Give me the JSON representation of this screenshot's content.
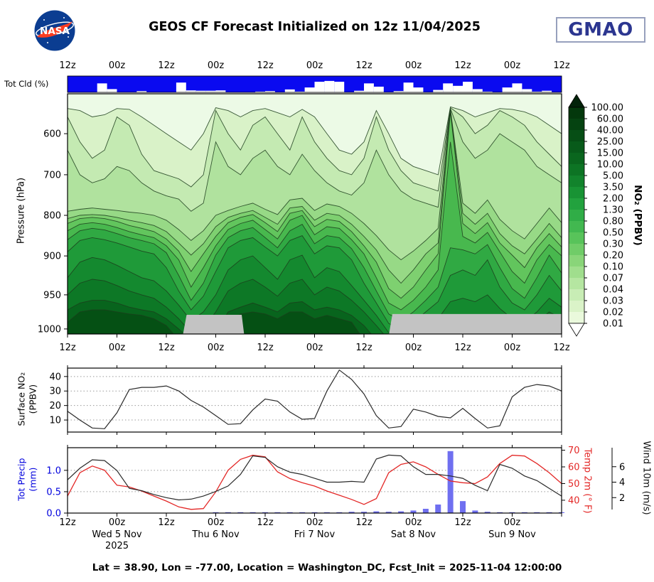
{
  "header": {
    "title": "GEOS CF Forecast Initialized on 12z 11/04/2025",
    "nasa_text": "NASA",
    "gmao_text": "GMAO"
  },
  "labels": {
    "tot_cld": "Tot Cld (%)",
    "pressure": "Pressure (hPa)",
    "surface_no2_l1": "Surface NO₂",
    "surface_no2_l2": "(PPBV)",
    "precip_l1": "Tot Precip",
    "precip_l2": "(mm)",
    "temp": "Temp 2m (° F)",
    "wind": "Wind 10m (m/s)",
    "colorbar": "NO₂ (PPBV)"
  },
  "footer": {
    "text": "Lat = 38.90, Lon = -77.00, Location = Washington_DC, Fcst_Init = 2025-11-04 12:00:00"
  },
  "colors": {
    "cloud_blue": "#0a0af0",
    "precip_bar": "#6f6ff0",
    "temp_line": "#e32726",
    "wind_line": "#2a2a2a",
    "surface_line": "#2a2a2a",
    "precip_axis_text": "#0000dd",
    "temp_axis_text": "#e32726",
    "gray_region": "#c3c3c3",
    "contour_line": "#1c3d1c",
    "contour_background": "#ecfae6"
  },
  "axis": {
    "x_labels_11": [
      "12z",
      "00z",
      "12z",
      "00z",
      "12z",
      "00z",
      "12z",
      "00z",
      "12z",
      "00z",
      "12z"
    ],
    "x_labels_10": [
      "12z",
      "00z",
      "12z",
      "00z",
      "12z",
      "00z",
      "12z",
      "00z",
      "12z",
      "00z"
    ],
    "dates": [
      "Wed 5 Nov",
      "Thu 6 Nov",
      "Fri 7 Nov",
      "Sat 8 Nov",
      "Sun 9 Nov"
    ],
    "year": "2025",
    "pressure_ticks": [
      600,
      700,
      800,
      900,
      950,
      1000
    ],
    "surface_ticks": [
      10,
      20,
      30,
      40
    ],
    "precip_ticks": [
      "0.0",
      "0.5",
      "1.0"
    ],
    "temp_ticks": [
      40,
      50,
      60,
      70
    ],
    "wind_ticks": [
      2,
      4,
      6
    ]
  },
  "chart_data": [
    {
      "type": "bar",
      "name": "total-cloud-cover-strip",
      "title": "Tot Cld (%)",
      "ymax": 100,
      "values": [
        100,
        100,
        100,
        45,
        80,
        100,
        100,
        92,
        100,
        100,
        100,
        40,
        88,
        90,
        90,
        88,
        100,
        100,
        100,
        95,
        92,
        100,
        82,
        95,
        70,
        35,
        30,
        35,
        100,
        90,
        45,
        65,
        100,
        92,
        40,
        70,
        100,
        85,
        45,
        60,
        35,
        80,
        95,
        100,
        70,
        45,
        80,
        95,
        90,
        100
      ]
    },
    {
      "type": "heatmap",
      "name": "no2-time-pressure-contour",
      "title": "NO2 (PPBV) time-height cross section",
      "ylabel": "Pressure (hPa)",
      "x_hours": 120,
      "time_step_hours": 3,
      "pressure_axis_map": [
        [
          505,
          0
        ],
        [
          600,
          0.166
        ],
        [
          700,
          0.337
        ],
        [
          800,
          0.506
        ],
        [
          900,
          0.675
        ],
        [
          950,
          0.837
        ],
        [
          1000,
          0.979
        ],
        [
          1020,
          1.04
        ]
      ],
      "bands": [
        {
          "level_ppbv": 0.04,
          "color": "#d9f2c8",
          "top_hpa": [
            540,
            545,
            560,
            555,
            540,
            542,
            560,
            580,
            600,
            620,
            640,
            600,
            538,
            545,
            560,
            545,
            540,
            550,
            560,
            542,
            560,
            600,
            640,
            650,
            620,
            545,
            600,
            660,
            680,
            690,
            700,
            536,
            545,
            560,
            550,
            540,
            542,
            548,
            560,
            580,
            600
          ]
        },
        {
          "level_ppbv": 0.07,
          "color": "#c4eab2",
          "top_hpa": [
            560,
            620,
            660,
            640,
            560,
            580,
            650,
            690,
            700,
            710,
            730,
            700,
            545,
            600,
            640,
            580,
            560,
            600,
            640,
            560,
            620,
            660,
            690,
            700,
            660,
            560,
            640,
            690,
            720,
            730,
            740,
            538,
            560,
            600,
            580,
            545,
            560,
            580,
            620,
            650,
            680
          ]
        },
        {
          "level_ppbv": 0.1,
          "color": "#b0e29e",
          "top_hpa": [
            640,
            700,
            720,
            710,
            680,
            690,
            720,
            740,
            752,
            760,
            790,
            770,
            620,
            680,
            700,
            660,
            640,
            680,
            700,
            650,
            690,
            720,
            740,
            750,
            720,
            640,
            700,
            740,
            760,
            770,
            780,
            540,
            620,
            660,
            640,
            600,
            620,
            640,
            680,
            700,
            720
          ]
        },
        {
          "level_ppbv": 0.2,
          "color": "#97d986",
          "top_hpa": [
            790,
            785,
            782,
            785,
            788,
            792,
            795,
            800,
            812,
            835,
            862,
            838,
            800,
            788,
            778,
            770,
            785,
            798,
            762,
            758,
            788,
            772,
            778,
            795,
            820,
            850,
            885,
            905,
            888,
            862,
            832,
            542,
            770,
            795,
            762,
            810,
            838,
            858,
            820,
            782,
            818
          ]
        },
        {
          "level_ppbv": 0.3,
          "color": "#7ed070",
          "top_hpa": [
            808,
            800,
            798,
            800,
            805,
            812,
            818,
            825,
            840,
            868,
            898,
            870,
            828,
            805,
            795,
            788,
            805,
            822,
            782,
            778,
            812,
            795,
            800,
            822,
            852,
            885,
            918,
            935,
            918,
            895,
            868,
            544,
            795,
            822,
            795,
            845,
            875,
            895,
            858,
            820,
            855
          ]
        },
        {
          "level_ppbv": 0.5,
          "color": "#62c55d",
          "top_hpa": [
            820,
            808,
            805,
            808,
            815,
            825,
            832,
            840,
            858,
            888,
            920,
            895,
            852,
            818,
            805,
            798,
            818,
            840,
            795,
            788,
            828,
            810,
            815,
            840,
            875,
            908,
            942,
            955,
            940,
            918,
            895,
            548,
            820,
            845,
            818,
            868,
            898,
            915,
            880,
            845,
            878
          ]
        },
        {
          "level_ppbv": 0.8,
          "color": "#48b84e",
          "top_hpa": [
            838,
            822,
            818,
            822,
            830,
            840,
            848,
            855,
            875,
            905,
            940,
            915,
            875,
            835,
            820,
            812,
            835,
            858,
            812,
            800,
            848,
            828,
            832,
            860,
            895,
            928,
            962,
            972,
            958,
            940,
            918,
            620,
            852,
            868,
            842,
            890,
            920,
            935,
            905,
            872,
            900
          ]
        },
        {
          "level_ppbv": 1.3,
          "color": "#30a943",
          "top_hpa": [
            860,
            838,
            832,
            836,
            845,
            855,
            862,
            870,
            892,
            925,
            958,
            935,
            898,
            855,
            838,
            830,
            855,
            880,
            838,
            822,
            870,
            850,
            855,
            882,
            915,
            945,
            978,
            988,
            975,
            958,
            940,
            880,
            885,
            895,
            872,
            915,
            942,
            955,
            928,
            898,
            922
          ]
        },
        {
          "level_ppbv": 2.0,
          "color": "#1f9a39",
          "top_hpa": [
            890,
            862,
            855,
            860,
            868,
            878,
            888,
            895,
            915,
            945,
            972,
            952,
            920,
            880,
            862,
            855,
            878,
            900,
            862,
            850,
            895,
            875,
            880,
            905,
            935,
            962,
            992,
            1000,
            990,
            975,
            960,
            925,
            918,
            925,
            905,
            940,
            962,
            972,
            950,
            925,
            945
          ]
        },
        {
          "level_ppbv": 3.5,
          "color": "#14892f",
          "top_hpa": [
            928,
            908,
            902,
            905,
            912,
            920,
            928,
            932,
            945,
            965,
            988,
            975,
            950,
            918,
            905,
            900,
            915,
            930,
            905,
            898,
            928,
            915,
            920,
            938,
            958,
            980,
            1005,
            1010,
            1005,
            995,
            985,
            960,
            955,
            960,
            950,
            970,
            985,
            990,
            975,
            955,
            968
          ]
        },
        {
          "level_ppbv": 5.0,
          "color": "#0d7826",
          "top_hpa": [
            950,
            935,
            930,
            932,
            938,
            945,
            950,
            955,
            968,
            985,
            1005,
            1000,
            975,
            945,
            935,
            930,
            940,
            952,
            935,
            930,
            950,
            940,
            945,
            958,
            975,
            995,
            1015,
            1015,
            1015,
            1010,
            1005,
            990,
            985,
            990,
            985,
            995,
            1005,
            1005,
            990,
            975,
            985
          ]
        },
        {
          "level_ppbv": 10.0,
          "color": "#08641d",
          "top_hpa": [
            972,
            962,
            958,
            958,
            962,
            968,
            972,
            975,
            985,
            1000,
            1015,
            1015,
            1005,
            975,
            968,
            962,
            968,
            975,
            962,
            960,
            972,
            968,
            972,
            980,
            995,
            1015,
            1015,
            1015,
            1015,
            1015,
            1015,
            1015,
            1015,
            1015,
            1015,
            1015,
            1015,
            1015,
            1015,
            1015,
            1015
          ]
        },
        {
          "level_ppbv": 15.0,
          "color": "#055014",
          "top_hpa": [
            990,
            975,
            972,
            972,
            975,
            978,
            980,
            985,
            995,
            1015,
            1015,
            1015,
            1015,
            990,
            978,
            975,
            978,
            985,
            975,
            975,
            985,
            980,
            985,
            990,
            1015,
            1015,
            1015,
            1015,
            1015,
            1015,
            1015,
            1015,
            1015,
            1015,
            1015,
            1015,
            1015,
            1015,
            1015,
            1015,
            1015
          ]
        }
      ],
      "gray_regions": [
        [
          [
            0.2302,
            1.04
          ],
          [
            0.241,
            0.92
          ],
          [
            0.3525,
            0.92
          ],
          [
            0.3597,
            1.04
          ]
        ],
        [
          [
            0.6475,
            1.04
          ],
          [
            0.6576,
            0.917
          ],
          [
            1.0,
            0.917
          ],
          [
            1.0,
            1.04
          ]
        ]
      ],
      "colorbar": {
        "title": "NO₂ (PPBV)",
        "labels": [
          "100.00",
          "60.00",
          "40.00",
          "25.00",
          "15.00",
          "10.00",
          "5.00",
          "3.50",
          "2.00",
          "1.30",
          "0.80",
          "0.50",
          "0.30",
          "0.20",
          "0.10",
          "0.07",
          "0.04",
          "0.03",
          "0.02",
          "0.01"
        ],
        "segment_colors": [
          "#03380c",
          "#054311",
          "#064e15",
          "#085a1a",
          "#0a661e",
          "#0d7424",
          "#12832c",
          "#189334",
          "#22a23e",
          "#30ad47",
          "#42b850",
          "#58c35a",
          "#70cc68",
          "#89d579",
          "#a0de8d",
          "#b5e6a1",
          "#c8edb5",
          "#daf3c8",
          "#eaf9dc"
        ],
        "extend_top_color": "#02230a",
        "extend_bottom_color": "#ffffff"
      }
    },
    {
      "type": "line",
      "name": "surface-no2-timeseries",
      "ylabel": "Surface NO₂ (PPBV)",
      "y_ticks": [
        10,
        20,
        30,
        40
      ],
      "y_range_top": 45.8,
      "y_range_bottom": 1.7,
      "time_step_hours": 3,
      "values": [
        16,
        10,
        4.5,
        4,
        15,
        31,
        32.5,
        32.5,
        33.5,
        30,
        23.5,
        19,
        13,
        7,
        7.5,
        17,
        24.5,
        23,
        15.5,
        10.5,
        11,
        30,
        44.5,
        38,
        28,
        13,
        4.5,
        5.5,
        17.5,
        15.5,
        12.5,
        11.5,
        18,
        11,
        4.5,
        6,
        26,
        32.5,
        34.5,
        33.5,
        30
      ]
    },
    {
      "type": "multi",
      "name": "precip-temp-wind-timeseries",
      "time_step_hours": 3,
      "series": [
        {
          "name": "Tot Precip (mm)",
          "kind": "bar",
          "axis_side": "left",
          "ticks": [
            0.0,
            0.5,
            1.0
          ],
          "range": [
            0,
            1.53
          ],
          "values": [
            0,
            0,
            0,
            0,
            0,
            0,
            0,
            0,
            0,
            0,
            0,
            0,
            0.02,
            0.02,
            0.02,
            0.02,
            0.02,
            0.02,
            0.02,
            0.02,
            0.02,
            0.02,
            0.02,
            0.03,
            0.03,
            0.04,
            0.03,
            0.04,
            0.06,
            0.1,
            0.2,
            1.45,
            0.28,
            0.06,
            0.03,
            0.02,
            0.02,
            0.02,
            0.02,
            0.02,
            0.02
          ]
        },
        {
          "name": "Temp 2m (° F)",
          "kind": "line",
          "axis_side": "right",
          "ticks": [
            40,
            50,
            60,
            70
          ],
          "range": [
            32.3,
            71.5
          ],
          "values": [
            42.5,
            56.5,
            60.5,
            58,
            49,
            48,
            45.5,
            42.5,
            39.5,
            36,
            34.5,
            35,
            45,
            58,
            64.5,
            67,
            66,
            57,
            53,
            50.5,
            48.5,
            45.5,
            43,
            40.5,
            37.5,
            41,
            56.5,
            61.5,
            63,
            60,
            55.5,
            51.5,
            50.5,
            50,
            54,
            62,
            67,
            66.5,
            62,
            56.5,
            50
          ]
        },
        {
          "name": "Wind 10m (m/s)",
          "kind": "line",
          "axis_side": "right-outer",
          "ticks": [
            2,
            4,
            6
          ],
          "range": [
            0,
            8.0
          ],
          "values": [
            4.3,
            5.8,
            6.9,
            6.8,
            5.5,
            3.2,
            2.9,
            2.4,
            2.0,
            1.7,
            1.8,
            2.2,
            2.8,
            3.5,
            5.0,
            7.4,
            7.2,
            6.0,
            5.3,
            5.0,
            4.5,
            4.0,
            4.0,
            4.1,
            4.0,
            7.0,
            7.5,
            7.4,
            6.0,
            5.0,
            5.0,
            4.8,
            4.5,
            3.6,
            2.9,
            6.3,
            5.8,
            4.8,
            4.2,
            3.2,
            2.2
          ]
        }
      ]
    }
  ]
}
